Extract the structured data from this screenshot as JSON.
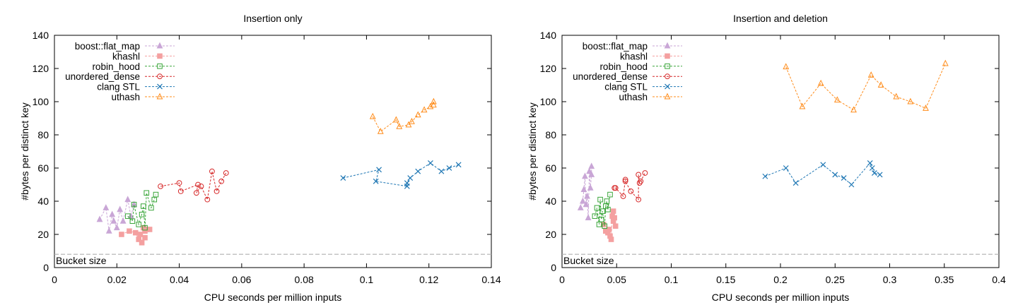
{
  "chart_data": [
    {
      "type": "scatter",
      "title": "Insertion only",
      "xlabel": "CPU seconds per million inputs",
      "ylabel": "#bytes per distinct key",
      "xlim": [
        0,
        0.14
      ],
      "ylim": [
        0,
        140
      ],
      "xticks": [
        "0",
        "0.02",
        "0.04",
        "0.06",
        "0.08",
        "0.1",
        "0.12",
        "0.14"
      ],
      "xtick_values": [
        0,
        0.02,
        0.04,
        0.06,
        0.08,
        0.1,
        0.12,
        0.14
      ],
      "yticks": [
        "0",
        "20",
        "40",
        "60",
        "80",
        "100",
        "120",
        "140"
      ],
      "ytick_values": [
        0,
        20,
        40,
        60,
        80,
        100,
        120,
        140
      ],
      "grid": false,
      "legend_position": "top-left",
      "reference_line": {
        "label": "Bucket size",
        "y": 8
      },
      "series": [
        {
          "name": "boost::flat_map",
          "color": "#c9a6d6",
          "marker": "triangle-filled",
          "points": [
            [
              0.0145,
              29
            ],
            [
              0.0165,
              36
            ],
            [
              0.0175,
              22
            ],
            [
              0.0185,
              32
            ],
            [
              0.019,
              28
            ],
            [
              0.02,
              24
            ],
            [
              0.021,
              35
            ],
            [
              0.022,
              28
            ],
            [
              0.0235,
              41
            ],
            [
              0.0245,
              31
            ],
            [
              0.0255,
              38
            ]
          ]
        },
        {
          "name": "khashl",
          "color": "#f4a0a0",
          "marker": "square-filled",
          "points": [
            [
              0.0215,
              20
            ],
            [
              0.024,
              22
            ],
            [
              0.026,
              21
            ],
            [
              0.027,
              17
            ],
            [
              0.0275,
              20
            ],
            [
              0.028,
              15
            ],
            [
              0.029,
              18
            ],
            [
              0.029,
              22
            ],
            [
              0.0295,
              23
            ],
            [
              0.0305,
              23
            ],
            [
              0.0285,
              24
            ]
          ]
        },
        {
          "name": "robin_hood",
          "color": "#3aa63a",
          "marker": "square-open",
          "points": [
            [
              0.0235,
              31
            ],
            [
              0.025,
              28
            ],
            [
              0.0255,
              38
            ],
            [
              0.027,
              26
            ],
            [
              0.028,
              32
            ],
            [
              0.0285,
              37
            ],
            [
              0.029,
              24
            ],
            [
              0.0295,
              45
            ],
            [
              0.031,
              36
            ],
            [
              0.032,
              41
            ],
            [
              0.0325,
              44
            ]
          ]
        },
        {
          "name": "unordered_dense",
          "color": "#d62728",
          "marker": "circle-open",
          "points": [
            [
              0.034,
              49
            ],
            [
              0.04,
              51
            ],
            [
              0.0405,
              46
            ],
            [
              0.046,
              50
            ],
            [
              0.0455,
              45
            ],
            [
              0.047,
              49
            ],
            [
              0.049,
              41
            ],
            [
              0.0505,
              58
            ],
            [
              0.052,
              46
            ],
            [
              0.0535,
              52
            ],
            [
              0.055,
              57
            ]
          ]
        },
        {
          "name": "clang STL",
          "color": "#1f77b4",
          "marker": "cross",
          "points": [
            [
              0.0925,
              54
            ],
            [
              0.104,
              59
            ],
            [
              0.103,
              52
            ],
            [
              0.113,
              49
            ],
            [
              0.113,
              51
            ],
            [
              0.114,
              54
            ],
            [
              0.1165,
              58
            ],
            [
              0.1205,
              63
            ],
            [
              0.124,
              58
            ],
            [
              0.1265,
              60
            ],
            [
              0.1295,
              62
            ]
          ]
        },
        {
          "name": "uthash",
          "color": "#ff8c1a",
          "marker": "triangle-open",
          "points": [
            [
              0.102,
              91
            ],
            [
              0.1045,
              82
            ],
            [
              0.1095,
              89
            ],
            [
              0.1105,
              85
            ],
            [
              0.1135,
              86
            ],
            [
              0.1145,
              88
            ],
            [
              0.1165,
              92
            ],
            [
              0.1185,
              95
            ],
            [
              0.1205,
              97
            ],
            [
              0.1215,
              100
            ],
            [
              0.1215,
              98
            ]
          ]
        }
      ]
    },
    {
      "type": "scatter",
      "title": "Insertion and deletion",
      "xlabel": "CPU seconds per million inputs",
      "ylabel": "#bytes per distinct key",
      "xlim": [
        0,
        0.4
      ],
      "ylim": [
        0,
        140
      ],
      "xticks": [
        "0",
        "0.05",
        "0.1",
        "0.15",
        "0.2",
        "0.25",
        "0.3",
        "0.35",
        "0.4"
      ],
      "xtick_values": [
        0,
        0.05,
        0.1,
        0.15,
        0.2,
        0.25,
        0.3,
        0.35,
        0.4
      ],
      "yticks": [
        "0",
        "20",
        "40",
        "60",
        "80",
        "100",
        "120",
        "140"
      ],
      "ytick_values": [
        0,
        20,
        40,
        60,
        80,
        100,
        120,
        140
      ],
      "grid": false,
      "legend_position": "top-left",
      "reference_line": {
        "label": "Bucket size",
        "y": 8
      },
      "series": [
        {
          "name": "boost::flat_map",
          "color": "#c9a6d6",
          "marker": "triangle-filled",
          "points": [
            [
              0.017,
              36
            ],
            [
              0.019,
              40
            ],
            [
              0.02,
              47
            ],
            [
              0.021,
              55
            ],
            [
              0.022,
              38
            ],
            [
              0.023,
              43
            ],
            [
              0.024,
              30
            ],
            [
              0.025,
              58
            ],
            [
              0.026,
              48
            ],
            [
              0.027,
              56
            ],
            [
              0.027,
              61
            ]
          ]
        },
        {
          "name": "khashl",
          "color": "#f4a0a0",
          "marker": "square-filled",
          "points": [
            [
              0.038,
              26
            ],
            [
              0.04,
              22
            ],
            [
              0.042,
              21
            ],
            [
              0.043,
              23
            ],
            [
              0.044,
              19
            ],
            [
              0.045,
              17
            ],
            [
              0.046,
              31
            ],
            [
              0.047,
              28
            ],
            [
              0.047,
              34
            ],
            [
              0.048,
              30
            ],
            [
              0.049,
              25
            ]
          ]
        },
        {
          "name": "robin_hood",
          "color": "#3aa63a",
          "marker": "square-open",
          "points": [
            [
              0.03,
              31
            ],
            [
              0.032,
              36
            ],
            [
              0.034,
              26
            ],
            [
              0.035,
              41
            ],
            [
              0.036,
              29
            ],
            [
              0.037,
              34
            ],
            [
              0.039,
              25
            ],
            [
              0.04,
              37
            ],
            [
              0.041,
              40
            ],
            [
              0.042,
              35
            ],
            [
              0.044,
              44
            ]
          ]
        },
        {
          "name": "unordered_dense",
          "color": "#d62728",
          "marker": "circle-open",
          "points": [
            [
              0.048,
              48
            ],
            [
              0.049,
              48
            ],
            [
              0.056,
              43
            ],
            [
              0.058,
              53
            ],
            [
              0.058,
              52
            ],
            [
              0.063,
              46
            ],
            [
              0.07,
              41
            ],
            [
              0.07,
              56
            ],
            [
              0.071,
              51
            ],
            [
              0.072,
              52
            ],
            [
              0.076,
              57
            ]
          ]
        },
        {
          "name": "clang STL",
          "color": "#1f77b4",
          "marker": "cross",
          "points": [
            [
              0.186,
              55
            ],
            [
              0.205,
              60
            ],
            [
              0.214,
              51
            ],
            [
              0.239,
              62
            ],
            [
              0.25,
              56
            ],
            [
              0.258,
              54
            ],
            [
              0.265,
              50
            ],
            [
              0.282,
              63
            ],
            [
              0.284,
              60
            ],
            [
              0.286,
              57
            ],
            [
              0.291,
              56
            ]
          ]
        },
        {
          "name": "uthash",
          "color": "#ff8c1a",
          "marker": "triangle-open",
          "points": [
            [
              0.205,
              121
            ],
            [
              0.22,
              97
            ],
            [
              0.237,
              111
            ],
            [
              0.252,
              101
            ],
            [
              0.267,
              95
            ],
            [
              0.283,
              116
            ],
            [
              0.292,
              110
            ],
            [
              0.306,
              103
            ],
            [
              0.319,
              100
            ],
            [
              0.333,
              96
            ],
            [
              0.351,
              123
            ]
          ]
        }
      ]
    }
  ]
}
